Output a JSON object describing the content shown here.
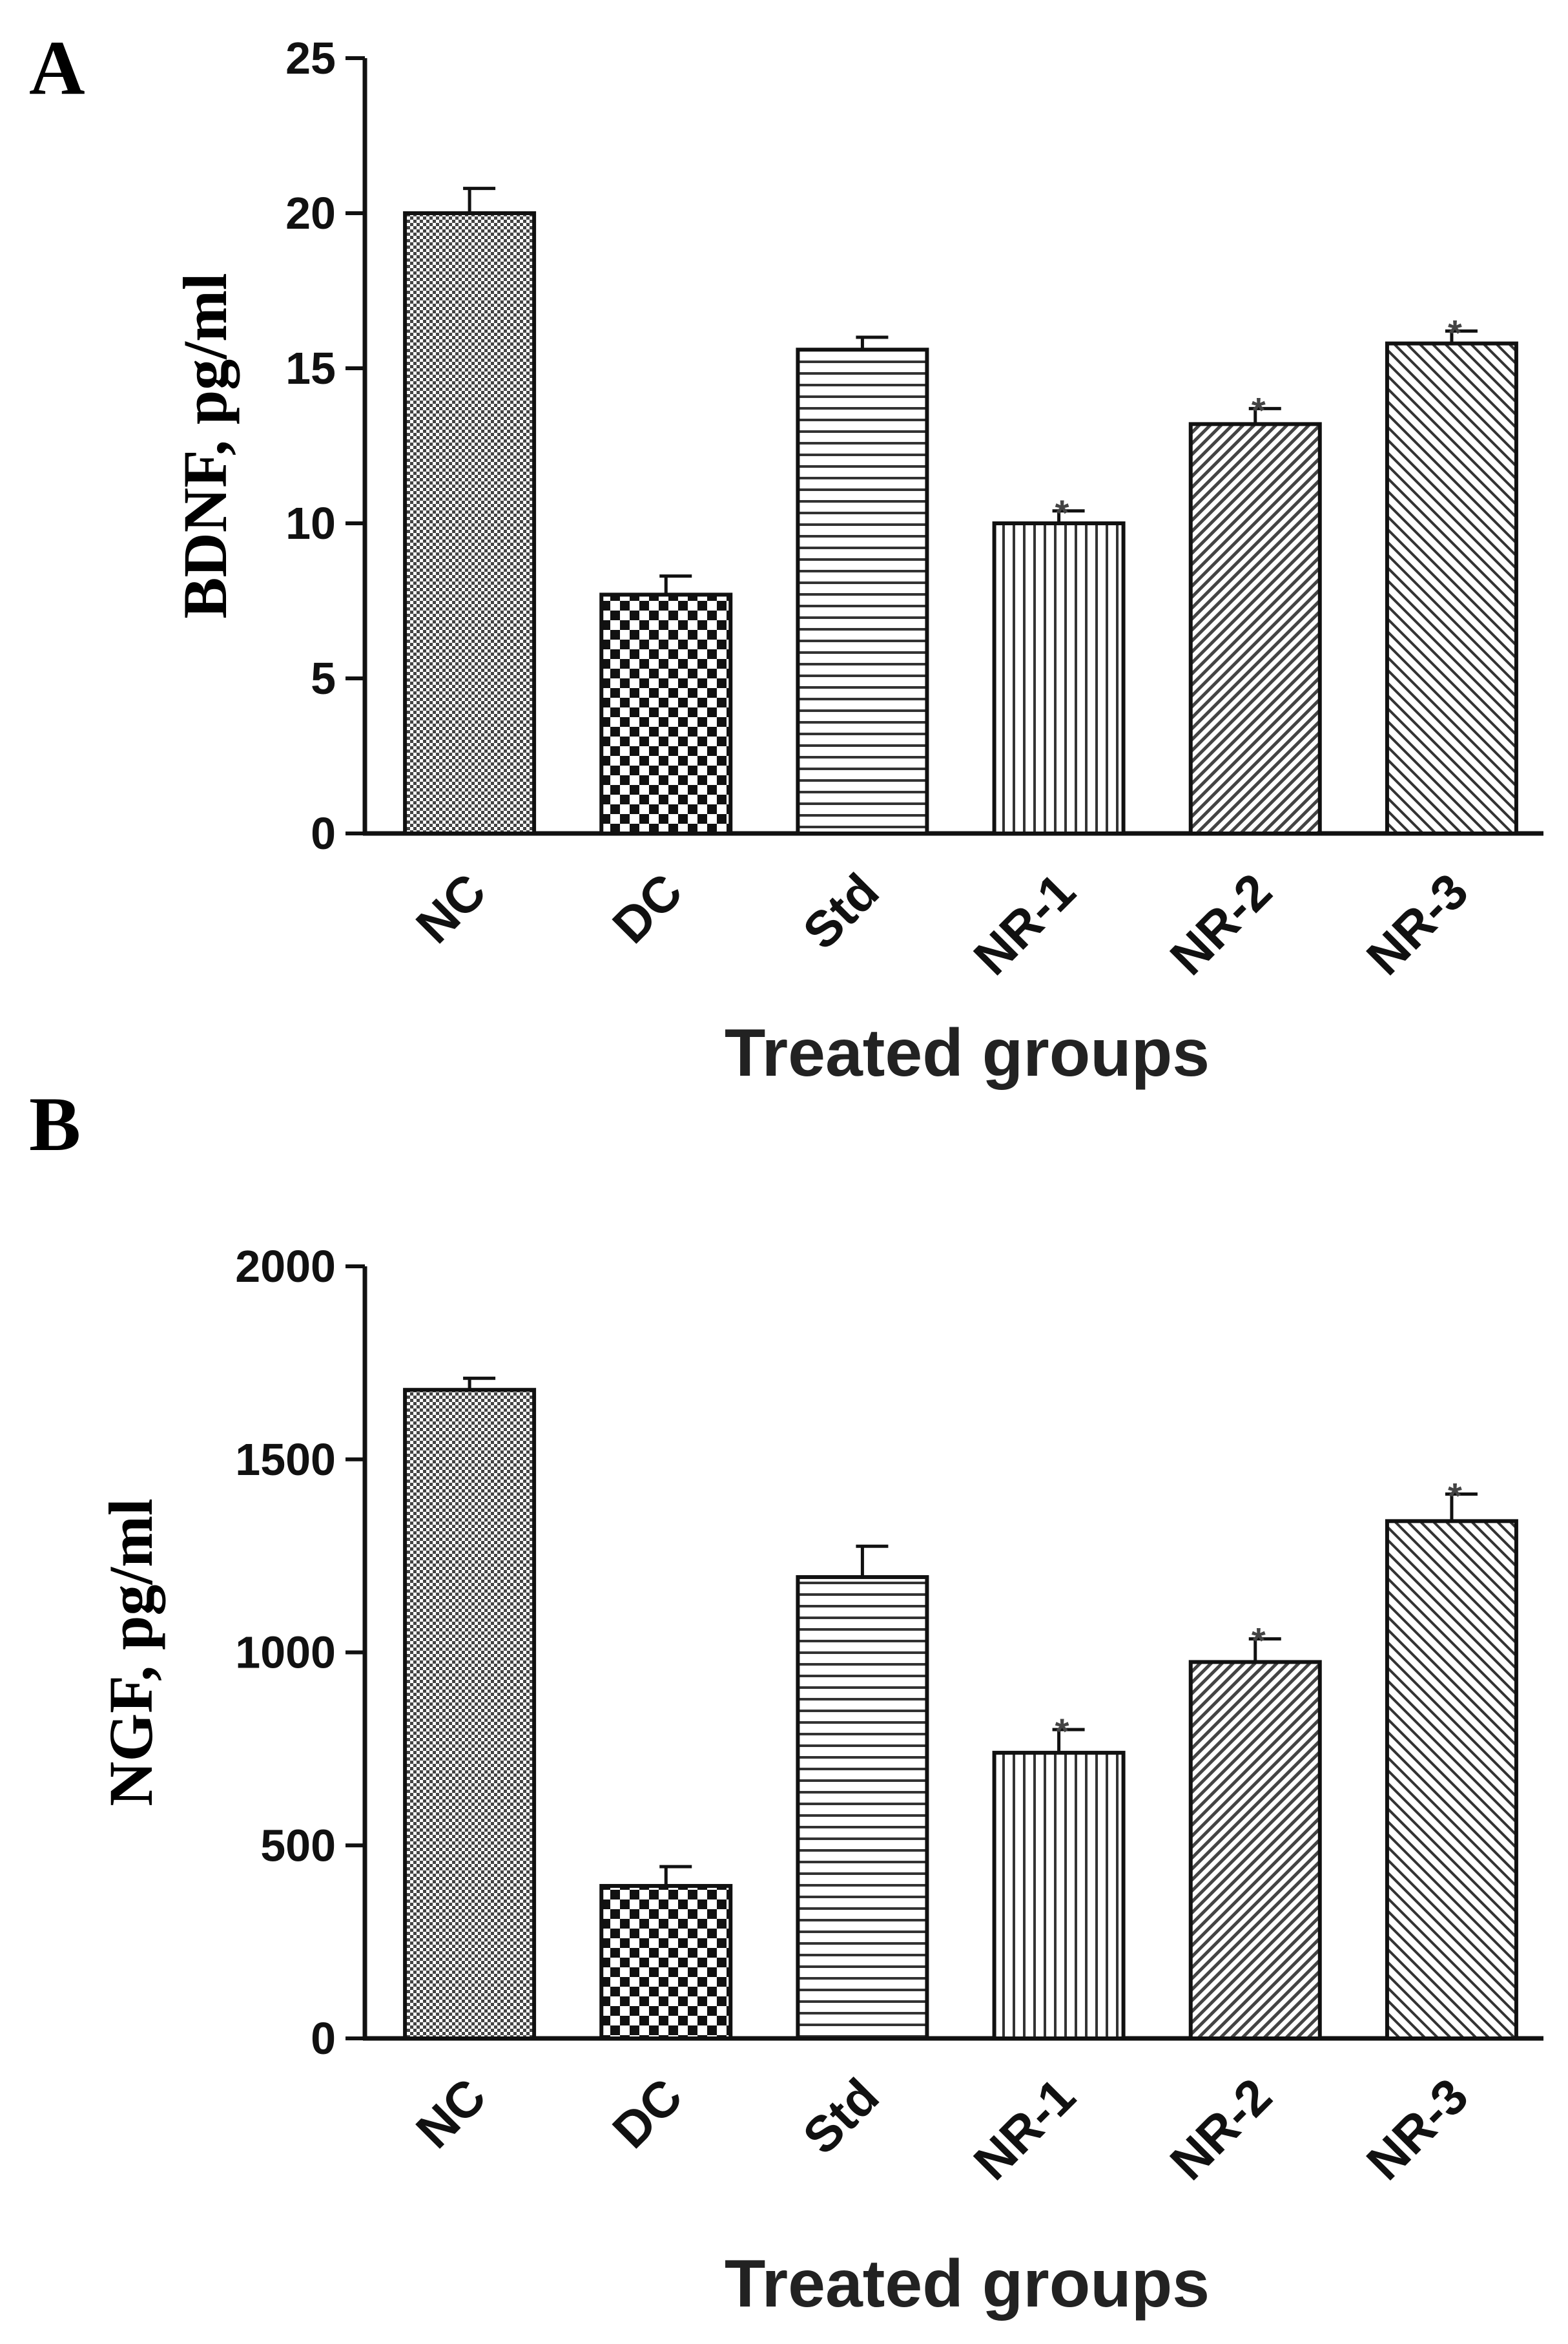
{
  "chart_data": [
    {
      "panel": "A",
      "type": "bar",
      "title": "",
      "xlabel": "Treated groups",
      "ylabel": "BDNF, pg/ml",
      "ylim": [
        0,
        25
      ],
      "yticks": [
        "0",
        "5",
        "10",
        "15",
        "20",
        "25"
      ],
      "categories": [
        "NC",
        "DC",
        "Std",
        "NR-1",
        "NR-2",
        "NR-3"
      ],
      "values": [
        20,
        7.7,
        15.6,
        10,
        13.2,
        15.8
      ],
      "errors": [
        0.8,
        0.6,
        0.4,
        0.4,
        0.5,
        0.4
      ],
      "significance": [
        "",
        "",
        "",
        "*",
        "*",
        "*"
      ],
      "patterns": [
        "fine-grid",
        "checker",
        "horizontal-lines",
        "vertical-lines",
        "diagonal-dense",
        "diagonal-sparse"
      ]
    },
    {
      "panel": "B",
      "type": "bar",
      "title": "",
      "xlabel": "Treated groups",
      "ylabel": "NGF, pg/ml",
      "ylim": [
        0,
        2000
      ],
      "yticks": [
        "0",
        "500",
        "1000",
        "1500",
        "2000"
      ],
      "categories": [
        "NC",
        "DC",
        "Std",
        "NR-1",
        "NR-2",
        "NR-3"
      ],
      "values": [
        1680,
        395,
        1195,
        740,
        975,
        1340
      ],
      "errors": [
        30,
        50,
        80,
        60,
        60,
        70
      ],
      "significance": [
        "",
        "",
        "",
        "*",
        "*",
        "*"
      ],
      "patterns": [
        "fine-grid",
        "checker",
        "horizontal-lines",
        "vertical-lines",
        "diagonal-dense",
        "diagonal-sparse"
      ]
    }
  ]
}
